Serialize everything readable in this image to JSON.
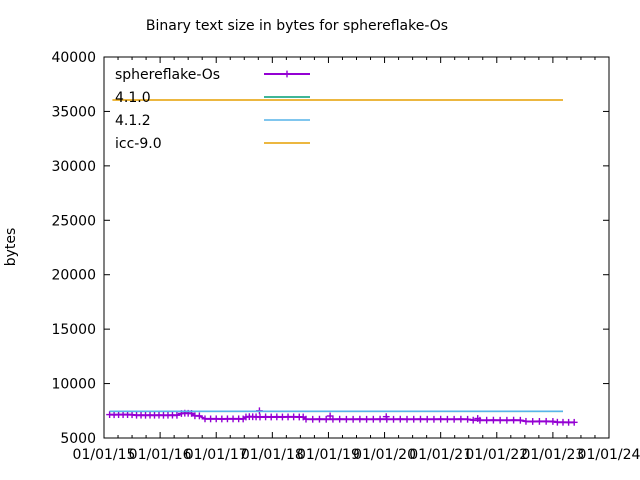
{
  "chart_data": {
    "type": "line",
    "title": "Binary text size in bytes for sphereflake-Os",
    "ylabel": "bytes",
    "xlabel": "",
    "xlim": [
      2015.0,
      2024.0
    ],
    "ylim": [
      5000,
      40000
    ],
    "grid": false,
    "legend_position": "top-left-inside",
    "ytick_values": [
      5000,
      10000,
      15000,
      20000,
      25000,
      30000,
      35000,
      40000
    ],
    "xtick_positions": [
      2015,
      2016,
      2017,
      2018,
      2019,
      2020,
      2021,
      2022,
      2023,
      2024
    ],
    "xtick_labels": [
      "01/01/15",
      "01/01/16",
      "01/01/17",
      "01/01/18",
      "01/01/19",
      "01/01/20",
      "01/01/21",
      "01/01/22",
      "01/01/23",
      "01/01/24"
    ],
    "x_minor_ticks_per_interval": 3,
    "series": [
      {
        "name": "sphereflake-Os",
        "color": "#9400d3",
        "style": "linespoints",
        "marker": "plus",
        "points": [
          [
            2015.1,
            7150
          ],
          [
            2015.18,
            7140
          ],
          [
            2015.26,
            7150
          ],
          [
            2015.34,
            7145
          ],
          [
            2015.42,
            7150
          ],
          [
            2015.5,
            7140
          ],
          [
            2015.58,
            7095
          ],
          [
            2015.66,
            7100
          ],
          [
            2015.74,
            7090
          ],
          [
            2015.82,
            7100
          ],
          [
            2015.9,
            7095
          ],
          [
            2015.98,
            7100
          ],
          [
            2016.06,
            7090
          ],
          [
            2016.14,
            7095
          ],
          [
            2016.22,
            7100
          ],
          [
            2016.3,
            7090
          ],
          [
            2016.38,
            7250
          ],
          [
            2016.44,
            7280
          ],
          [
            2016.5,
            7270
          ],
          [
            2016.56,
            7260
          ],
          [
            2016.62,
            7040
          ],
          [
            2016.7,
            7030
          ],
          [
            2016.8,
            6760
          ],
          [
            2016.9,
            6755
          ],
          [
            2017.0,
            6760
          ],
          [
            2017.1,
            6750
          ],
          [
            2017.2,
            6760
          ],
          [
            2017.3,
            6755
          ],
          [
            2017.4,
            6760
          ],
          [
            2017.48,
            6750
          ],
          [
            2017.53,
            6930
          ],
          [
            2017.59,
            6960
          ],
          [
            2017.65,
            6950
          ],
          [
            2017.71,
            6940
          ],
          [
            2017.78,
            6930
          ],
          [
            2017.88,
            6940
          ],
          [
            2017.98,
            6930
          ],
          [
            2018.08,
            6940
          ],
          [
            2018.18,
            6930
          ],
          [
            2018.28,
            6935
          ],
          [
            2018.38,
            6940
          ],
          [
            2018.48,
            6930
          ],
          [
            2018.55,
            6930
          ],
          [
            2018.6,
            6730
          ],
          [
            2018.72,
            6720
          ],
          [
            2018.84,
            6730
          ],
          [
            2018.96,
            6720
          ],
          [
            2019.08,
            6725
          ],
          [
            2019.2,
            6730
          ],
          [
            2019.32,
            6720
          ],
          [
            2019.44,
            6720
          ],
          [
            2019.56,
            6730
          ],
          [
            2019.68,
            6720
          ],
          [
            2019.8,
            6725
          ],
          [
            2019.92,
            6730
          ],
          [
            2020.04,
            6720
          ],
          [
            2020.16,
            6720
          ],
          [
            2020.28,
            6730
          ],
          [
            2020.4,
            6720
          ],
          [
            2020.52,
            6725
          ],
          [
            2020.64,
            6730
          ],
          [
            2020.76,
            6720
          ],
          [
            2020.88,
            6720
          ],
          [
            2021.0,
            6730
          ],
          [
            2021.12,
            6720
          ],
          [
            2021.24,
            6720
          ],
          [
            2021.36,
            6730
          ],
          [
            2021.48,
            6720
          ],
          [
            2021.58,
            6640
          ],
          [
            2021.7,
            6630
          ],
          [
            2021.82,
            6635
          ],
          [
            2021.94,
            6640
          ],
          [
            2022.06,
            6630
          ],
          [
            2022.18,
            6630
          ],
          [
            2022.3,
            6640
          ],
          [
            2022.42,
            6630
          ],
          [
            2022.52,
            6530
          ],
          [
            2022.64,
            6520
          ],
          [
            2022.76,
            6525
          ],
          [
            2022.88,
            6530
          ],
          [
            2023.0,
            6520
          ],
          [
            2023.08,
            6450
          ],
          [
            2023.18,
            6445
          ],
          [
            2023.28,
            6440
          ],
          [
            2023.38,
            6440
          ]
        ],
        "extra_points": [
          [
            2017.77,
            7500
          ],
          [
            2019.03,
            7020
          ],
          [
            2020.03,
            6960
          ],
          [
            2021.66,
            6790
          ]
        ]
      },
      {
        "name": "4.1.0",
        "color": "#009e73",
        "style": "line",
        "points": [
          [
            2015.1,
            7446
          ],
          [
            2023.18,
            7446
          ]
        ]
      },
      {
        "name": "4.1.2",
        "color": "#56b4e9",
        "style": "line",
        "points": [
          [
            2015.1,
            7458
          ],
          [
            2023.18,
            7458
          ]
        ]
      },
      {
        "name": "icc-9.0",
        "color": "#e69f00",
        "style": "line",
        "points": [
          [
            2015.15,
            36050
          ],
          [
            2023.18,
            36050
          ]
        ]
      }
    ]
  }
}
